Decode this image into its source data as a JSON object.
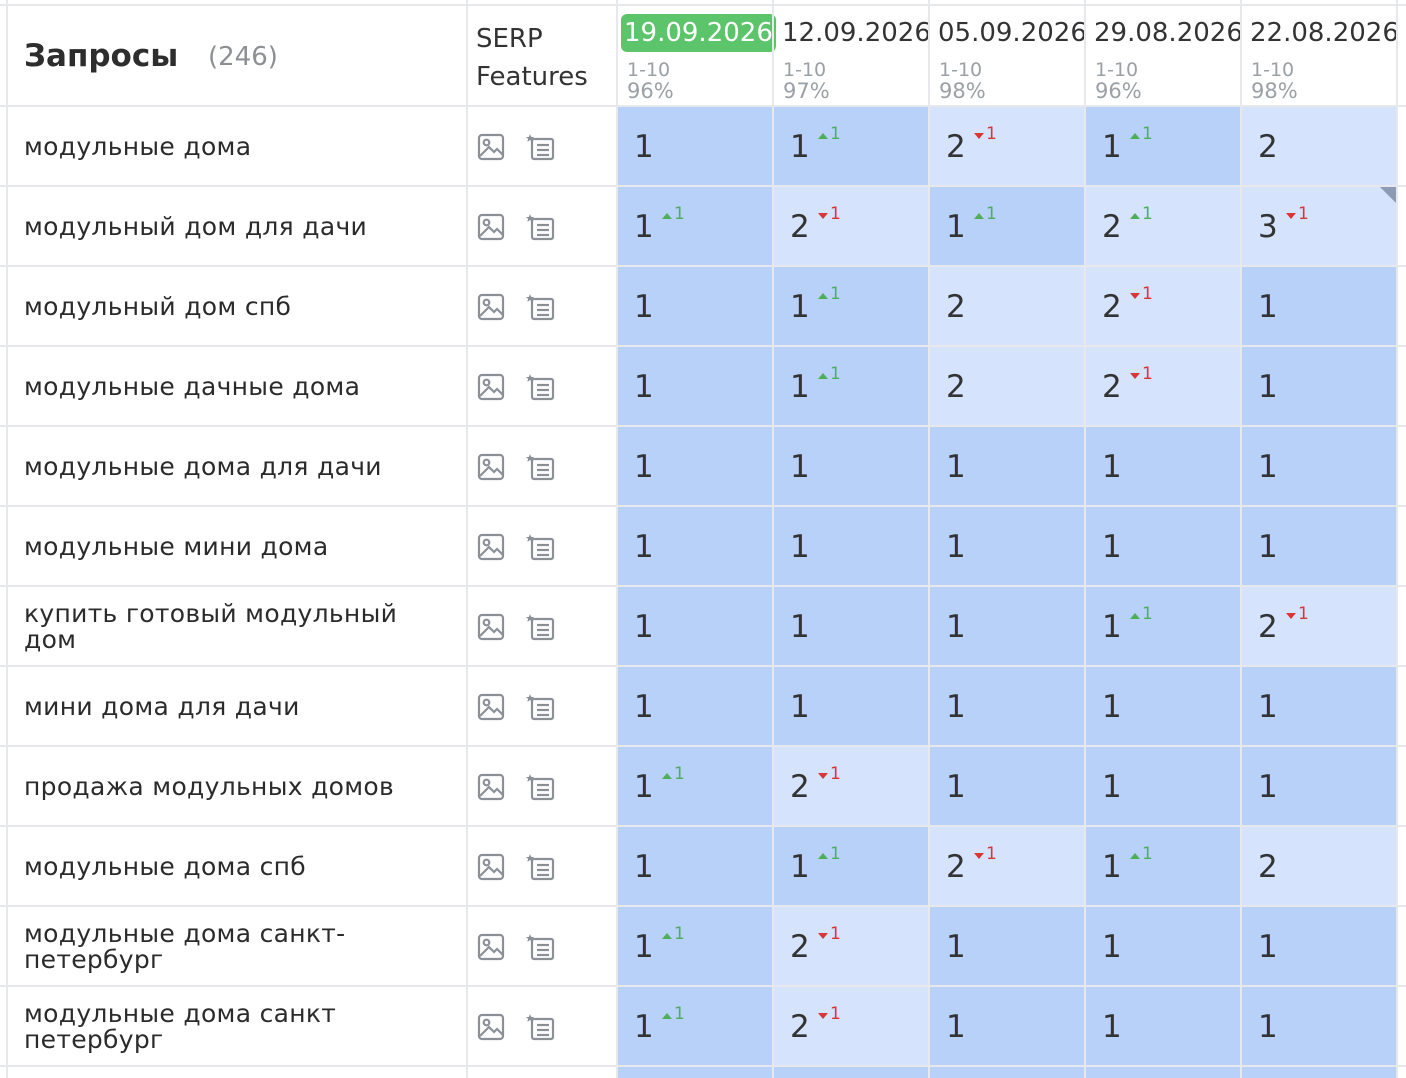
{
  "header": {
    "title": "Запросы",
    "count": "(246)",
    "serp_line1": "SERP",
    "serp_line2": "Features"
  },
  "dates": [
    {
      "label": "19.09.2026",
      "range": "1-10",
      "pct": "96%",
      "active": true
    },
    {
      "label": "12.09.2026",
      "range": "1-10",
      "pct": "97%",
      "active": false
    },
    {
      "label": "05.09.2026",
      "range": "1-10",
      "pct": "98%",
      "active": false
    },
    {
      "label": "29.08.2026",
      "range": "1-10",
      "pct": "96%",
      "active": false
    },
    {
      "label": "22.08.2026",
      "range": "1-10",
      "pct": "98%",
      "active": false
    }
  ],
  "icons": [
    "image-icon",
    "featured-snippet-icon"
  ],
  "colors": {
    "cell_dark": "#b8d1f8",
    "cell_light": "#d5e3fc",
    "up": "#4fae5c",
    "down": "#d93636",
    "active_date": "#5cc46b"
  },
  "rows": [
    {
      "query": "модульные дома",
      "cells": [
        {
          "pos": "1",
          "chg": "",
          "dir": "",
          "tone": "dark"
        },
        {
          "pos": "1",
          "chg": "1",
          "dir": "up",
          "tone": "dark"
        },
        {
          "pos": "2",
          "chg": "1",
          "dir": "down",
          "tone": "light"
        },
        {
          "pos": "1",
          "chg": "1",
          "dir": "up",
          "tone": "dark"
        },
        {
          "pos": "2",
          "chg": "",
          "dir": "",
          "tone": "light"
        }
      ]
    },
    {
      "query": "модульный дом для дачи",
      "cells": [
        {
          "pos": "1",
          "chg": "1",
          "dir": "up",
          "tone": "dark"
        },
        {
          "pos": "2",
          "chg": "1",
          "dir": "down",
          "tone": "light"
        },
        {
          "pos": "1",
          "chg": "1",
          "dir": "up",
          "tone": "dark"
        },
        {
          "pos": "2",
          "chg": "1",
          "dir": "up",
          "tone": "light"
        },
        {
          "pos": "3",
          "chg": "1",
          "dir": "down",
          "tone": "light",
          "corner": true
        }
      ]
    },
    {
      "query": "модульный дом спб",
      "cells": [
        {
          "pos": "1",
          "chg": "",
          "dir": "",
          "tone": "dark"
        },
        {
          "pos": "1",
          "chg": "1",
          "dir": "up",
          "tone": "dark"
        },
        {
          "pos": "2",
          "chg": "",
          "dir": "",
          "tone": "light"
        },
        {
          "pos": "2",
          "chg": "1",
          "dir": "down",
          "tone": "light"
        },
        {
          "pos": "1",
          "chg": "",
          "dir": "",
          "tone": "dark"
        }
      ]
    },
    {
      "query": "модульные дачные дома",
      "cells": [
        {
          "pos": "1",
          "chg": "",
          "dir": "",
          "tone": "dark"
        },
        {
          "pos": "1",
          "chg": "1",
          "dir": "up",
          "tone": "dark"
        },
        {
          "pos": "2",
          "chg": "",
          "dir": "",
          "tone": "light"
        },
        {
          "pos": "2",
          "chg": "1",
          "dir": "down",
          "tone": "light"
        },
        {
          "pos": "1",
          "chg": "",
          "dir": "",
          "tone": "dark"
        }
      ]
    },
    {
      "query": "модульные дома для дачи",
      "cells": [
        {
          "pos": "1",
          "chg": "",
          "dir": "",
          "tone": "dark"
        },
        {
          "pos": "1",
          "chg": "",
          "dir": "",
          "tone": "dark"
        },
        {
          "pos": "1",
          "chg": "",
          "dir": "",
          "tone": "dark"
        },
        {
          "pos": "1",
          "chg": "",
          "dir": "",
          "tone": "dark"
        },
        {
          "pos": "1",
          "chg": "",
          "dir": "",
          "tone": "dark"
        }
      ]
    },
    {
      "query": "модульные мини дома",
      "cells": [
        {
          "pos": "1",
          "chg": "",
          "dir": "",
          "tone": "dark"
        },
        {
          "pos": "1",
          "chg": "",
          "dir": "",
          "tone": "dark"
        },
        {
          "pos": "1",
          "chg": "",
          "dir": "",
          "tone": "dark"
        },
        {
          "pos": "1",
          "chg": "",
          "dir": "",
          "tone": "dark"
        },
        {
          "pos": "1",
          "chg": "",
          "dir": "",
          "tone": "dark"
        }
      ]
    },
    {
      "query": "купить готовый модульный дом",
      "cells": [
        {
          "pos": "1",
          "chg": "",
          "dir": "",
          "tone": "dark"
        },
        {
          "pos": "1",
          "chg": "",
          "dir": "",
          "tone": "dark"
        },
        {
          "pos": "1",
          "chg": "",
          "dir": "",
          "tone": "dark"
        },
        {
          "pos": "1",
          "chg": "1",
          "dir": "up",
          "tone": "dark"
        },
        {
          "pos": "2",
          "chg": "1",
          "dir": "down",
          "tone": "light"
        }
      ]
    },
    {
      "query": "мини дома для дачи",
      "cells": [
        {
          "pos": "1",
          "chg": "",
          "dir": "",
          "tone": "dark"
        },
        {
          "pos": "1",
          "chg": "",
          "dir": "",
          "tone": "dark"
        },
        {
          "pos": "1",
          "chg": "",
          "dir": "",
          "tone": "dark"
        },
        {
          "pos": "1",
          "chg": "",
          "dir": "",
          "tone": "dark"
        },
        {
          "pos": "1",
          "chg": "",
          "dir": "",
          "tone": "dark"
        }
      ]
    },
    {
      "query": "продажа модульных домов",
      "cells": [
        {
          "pos": "1",
          "chg": "1",
          "dir": "up",
          "tone": "dark"
        },
        {
          "pos": "2",
          "chg": "1",
          "dir": "down",
          "tone": "light"
        },
        {
          "pos": "1",
          "chg": "",
          "dir": "",
          "tone": "dark"
        },
        {
          "pos": "1",
          "chg": "",
          "dir": "",
          "tone": "dark"
        },
        {
          "pos": "1",
          "chg": "",
          "dir": "",
          "tone": "dark"
        }
      ]
    },
    {
      "query": "модульные дома спб",
      "cells": [
        {
          "pos": "1",
          "chg": "",
          "dir": "",
          "tone": "dark"
        },
        {
          "pos": "1",
          "chg": "1",
          "dir": "up",
          "tone": "dark"
        },
        {
          "pos": "2",
          "chg": "1",
          "dir": "down",
          "tone": "light"
        },
        {
          "pos": "1",
          "chg": "1",
          "dir": "up",
          "tone": "dark"
        },
        {
          "pos": "2",
          "chg": "",
          "dir": "",
          "tone": "light"
        }
      ]
    },
    {
      "query": "модульные дома санкт-петербург",
      "cells": [
        {
          "pos": "1",
          "chg": "1",
          "dir": "up",
          "tone": "dark"
        },
        {
          "pos": "2",
          "chg": "1",
          "dir": "down",
          "tone": "light"
        },
        {
          "pos": "1",
          "chg": "",
          "dir": "",
          "tone": "dark"
        },
        {
          "pos": "1",
          "chg": "",
          "dir": "",
          "tone": "dark"
        },
        {
          "pos": "1",
          "chg": "",
          "dir": "",
          "tone": "dark"
        }
      ]
    },
    {
      "query": "модульные дома санкт петербург",
      "cells": [
        {
          "pos": "1",
          "chg": "1",
          "dir": "up",
          "tone": "dark"
        },
        {
          "pos": "2",
          "chg": "1",
          "dir": "down",
          "tone": "light"
        },
        {
          "pos": "1",
          "chg": "",
          "dir": "",
          "tone": "dark"
        },
        {
          "pos": "1",
          "chg": "",
          "dir": "",
          "tone": "dark"
        },
        {
          "pos": "1",
          "chg": "",
          "dir": "",
          "tone": "dark"
        }
      ]
    }
  ]
}
